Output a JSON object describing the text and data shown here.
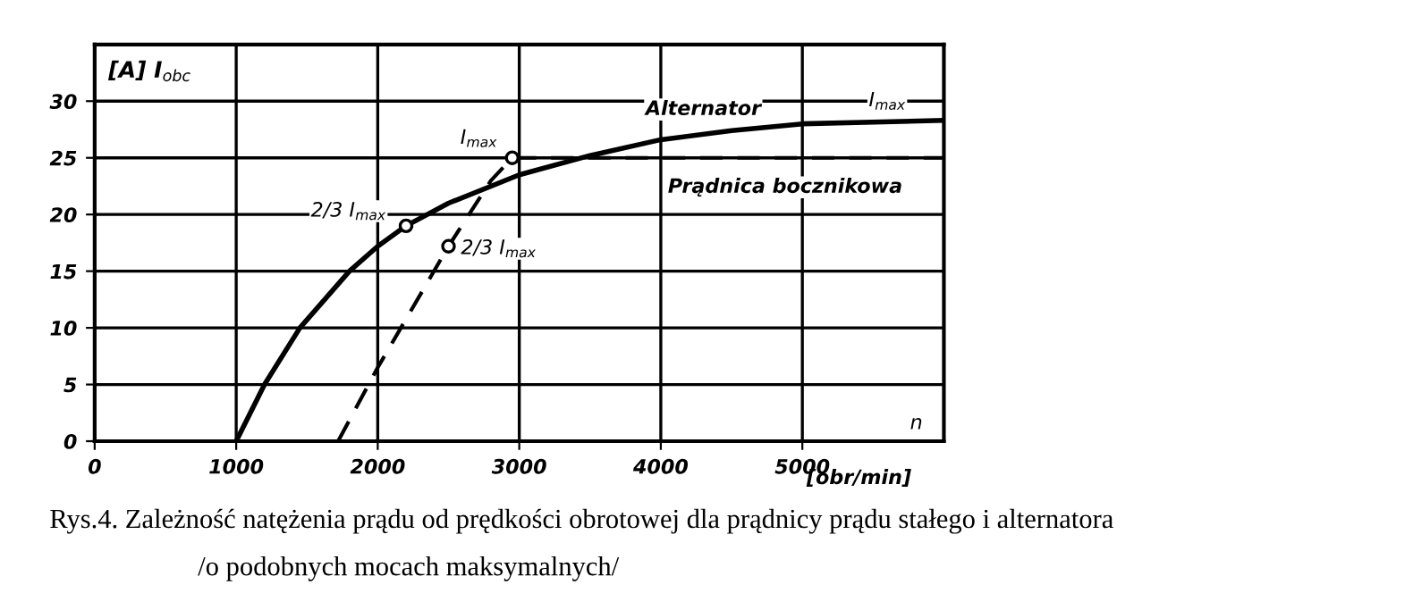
{
  "chart_data": {
    "type": "line",
    "xlabel": "[obr/min]",
    "ylabel": "[A] I$_{obc}$",
    "xlim": [
      0,
      6000
    ],
    "xticks": [
      0,
      1000,
      2000,
      3000,
      4000,
      5000
    ],
    "ylim": [
      0,
      35
    ],
    "yticks": [
      0,
      5,
      10,
      15,
      20,
      25,
      30
    ],
    "grid": true,
    "series": [
      {
        "name": "Alternator",
        "color": "#000000",
        "line_style": "solid",
        "x": [
          1000,
          1200,
          1450,
          1800,
          2000,
          2200,
          2500,
          3000,
          3500,
          4000,
          4500,
          5000,
          6000
        ],
        "values": [
          0,
          5,
          10,
          15,
          17.2,
          19,
          21,
          23.5,
          25.2,
          26.6,
          27.4,
          28,
          28.3
        ]
      },
      {
        "name": "Prądnica bocznikowa",
        "color": "#000000",
        "line_style": "dashed",
        "x": [
          1720,
          2000,
          2500,
          2800,
          2950,
          6000
        ],
        "values": [
          0,
          6.5,
          17.2,
          23,
          25,
          25
        ]
      },
      {
        "type": "scatter",
        "marker": "circle",
        "color": "#000000",
        "x": [
          2200,
          2500,
          2950
        ],
        "values": [
          19,
          17.2,
          25
        ]
      }
    ],
    "annotations": [
      {
        "text": "I$_{max}$",
        "x": 2950,
        "y": 25
      },
      {
        "text": "2/3 I$_{max}$",
        "x": 2200,
        "y": 19
      },
      {
        "text": "2/3 I$_{max}$",
        "x": 2500,
        "y": 17.2
      },
      {
        "text": "I$_{max}$",
        "x": 5600,
        "y": 28.3
      },
      "n",
      "Rys.4. Zależność natężenia prądu od prędkości obrotowej dla prądnicy prądu stałego i alternatora",
      "/o podobnych mocach maksymalnych/"
    ]
  }
}
